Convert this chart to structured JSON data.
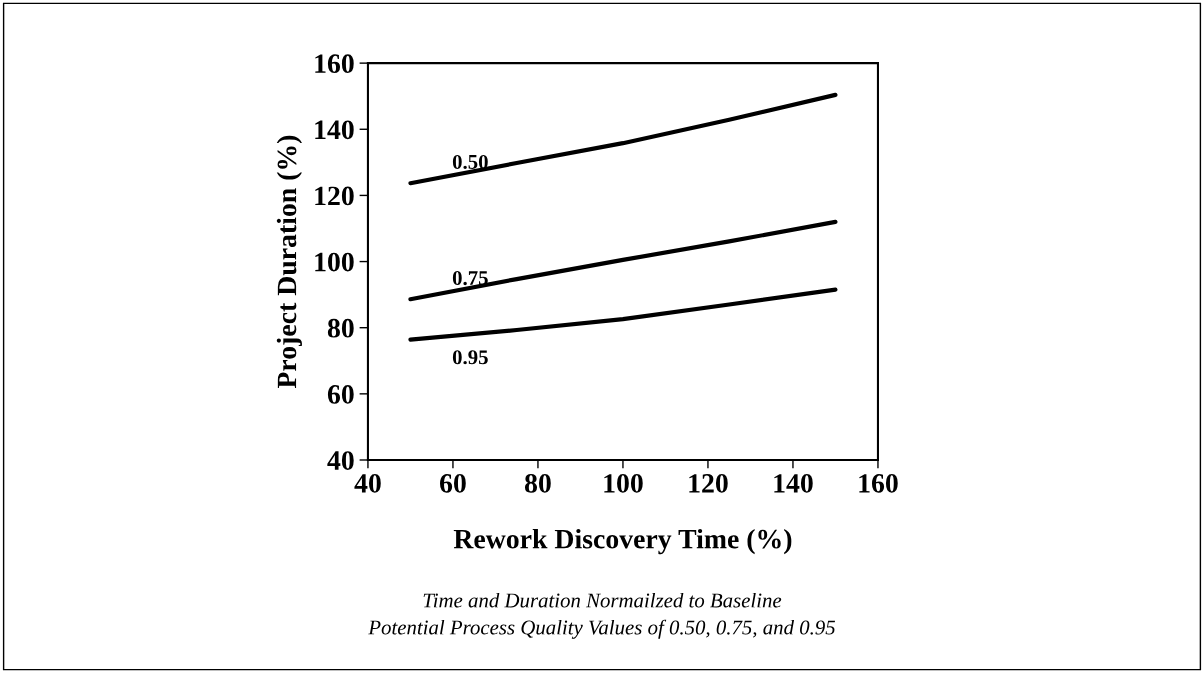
{
  "chart_data": {
    "type": "line",
    "xlabel": "Rework Discovery Time (%)",
    "ylabel": "Project Duration (%)",
    "x": [
      50,
      75,
      100,
      125,
      150
    ],
    "series": [
      {
        "name": "0.50",
        "color": "#000000",
        "values": [
          123.7,
          129.8,
          135.8,
          142.9,
          150.4
        ]
      },
      {
        "name": "0.75",
        "color": "#000000",
        "values": [
          88.6,
          94.7,
          100.5,
          106.1,
          112
        ]
      },
      {
        "name": "0.95",
        "color": "#000000",
        "values": [
          76.4,
          79.3,
          82.6,
          87,
          91.5
        ]
      }
    ],
    "xlim": [
      40,
      160
    ],
    "xticks": [
      40,
      60,
      80,
      100,
      120,
      140,
      160
    ],
    "ylim": [
      40,
      160
    ],
    "yticks": [
      40,
      60,
      80,
      100,
      120,
      140,
      160
    ],
    "grid": false,
    "marker": "none",
    "line_style": "solid",
    "annotations": [
      "Time and Duration Normailzed to Baseline",
      "Potential Process Quality Values of 0.50, 0.75, and 0.95"
    ]
  }
}
